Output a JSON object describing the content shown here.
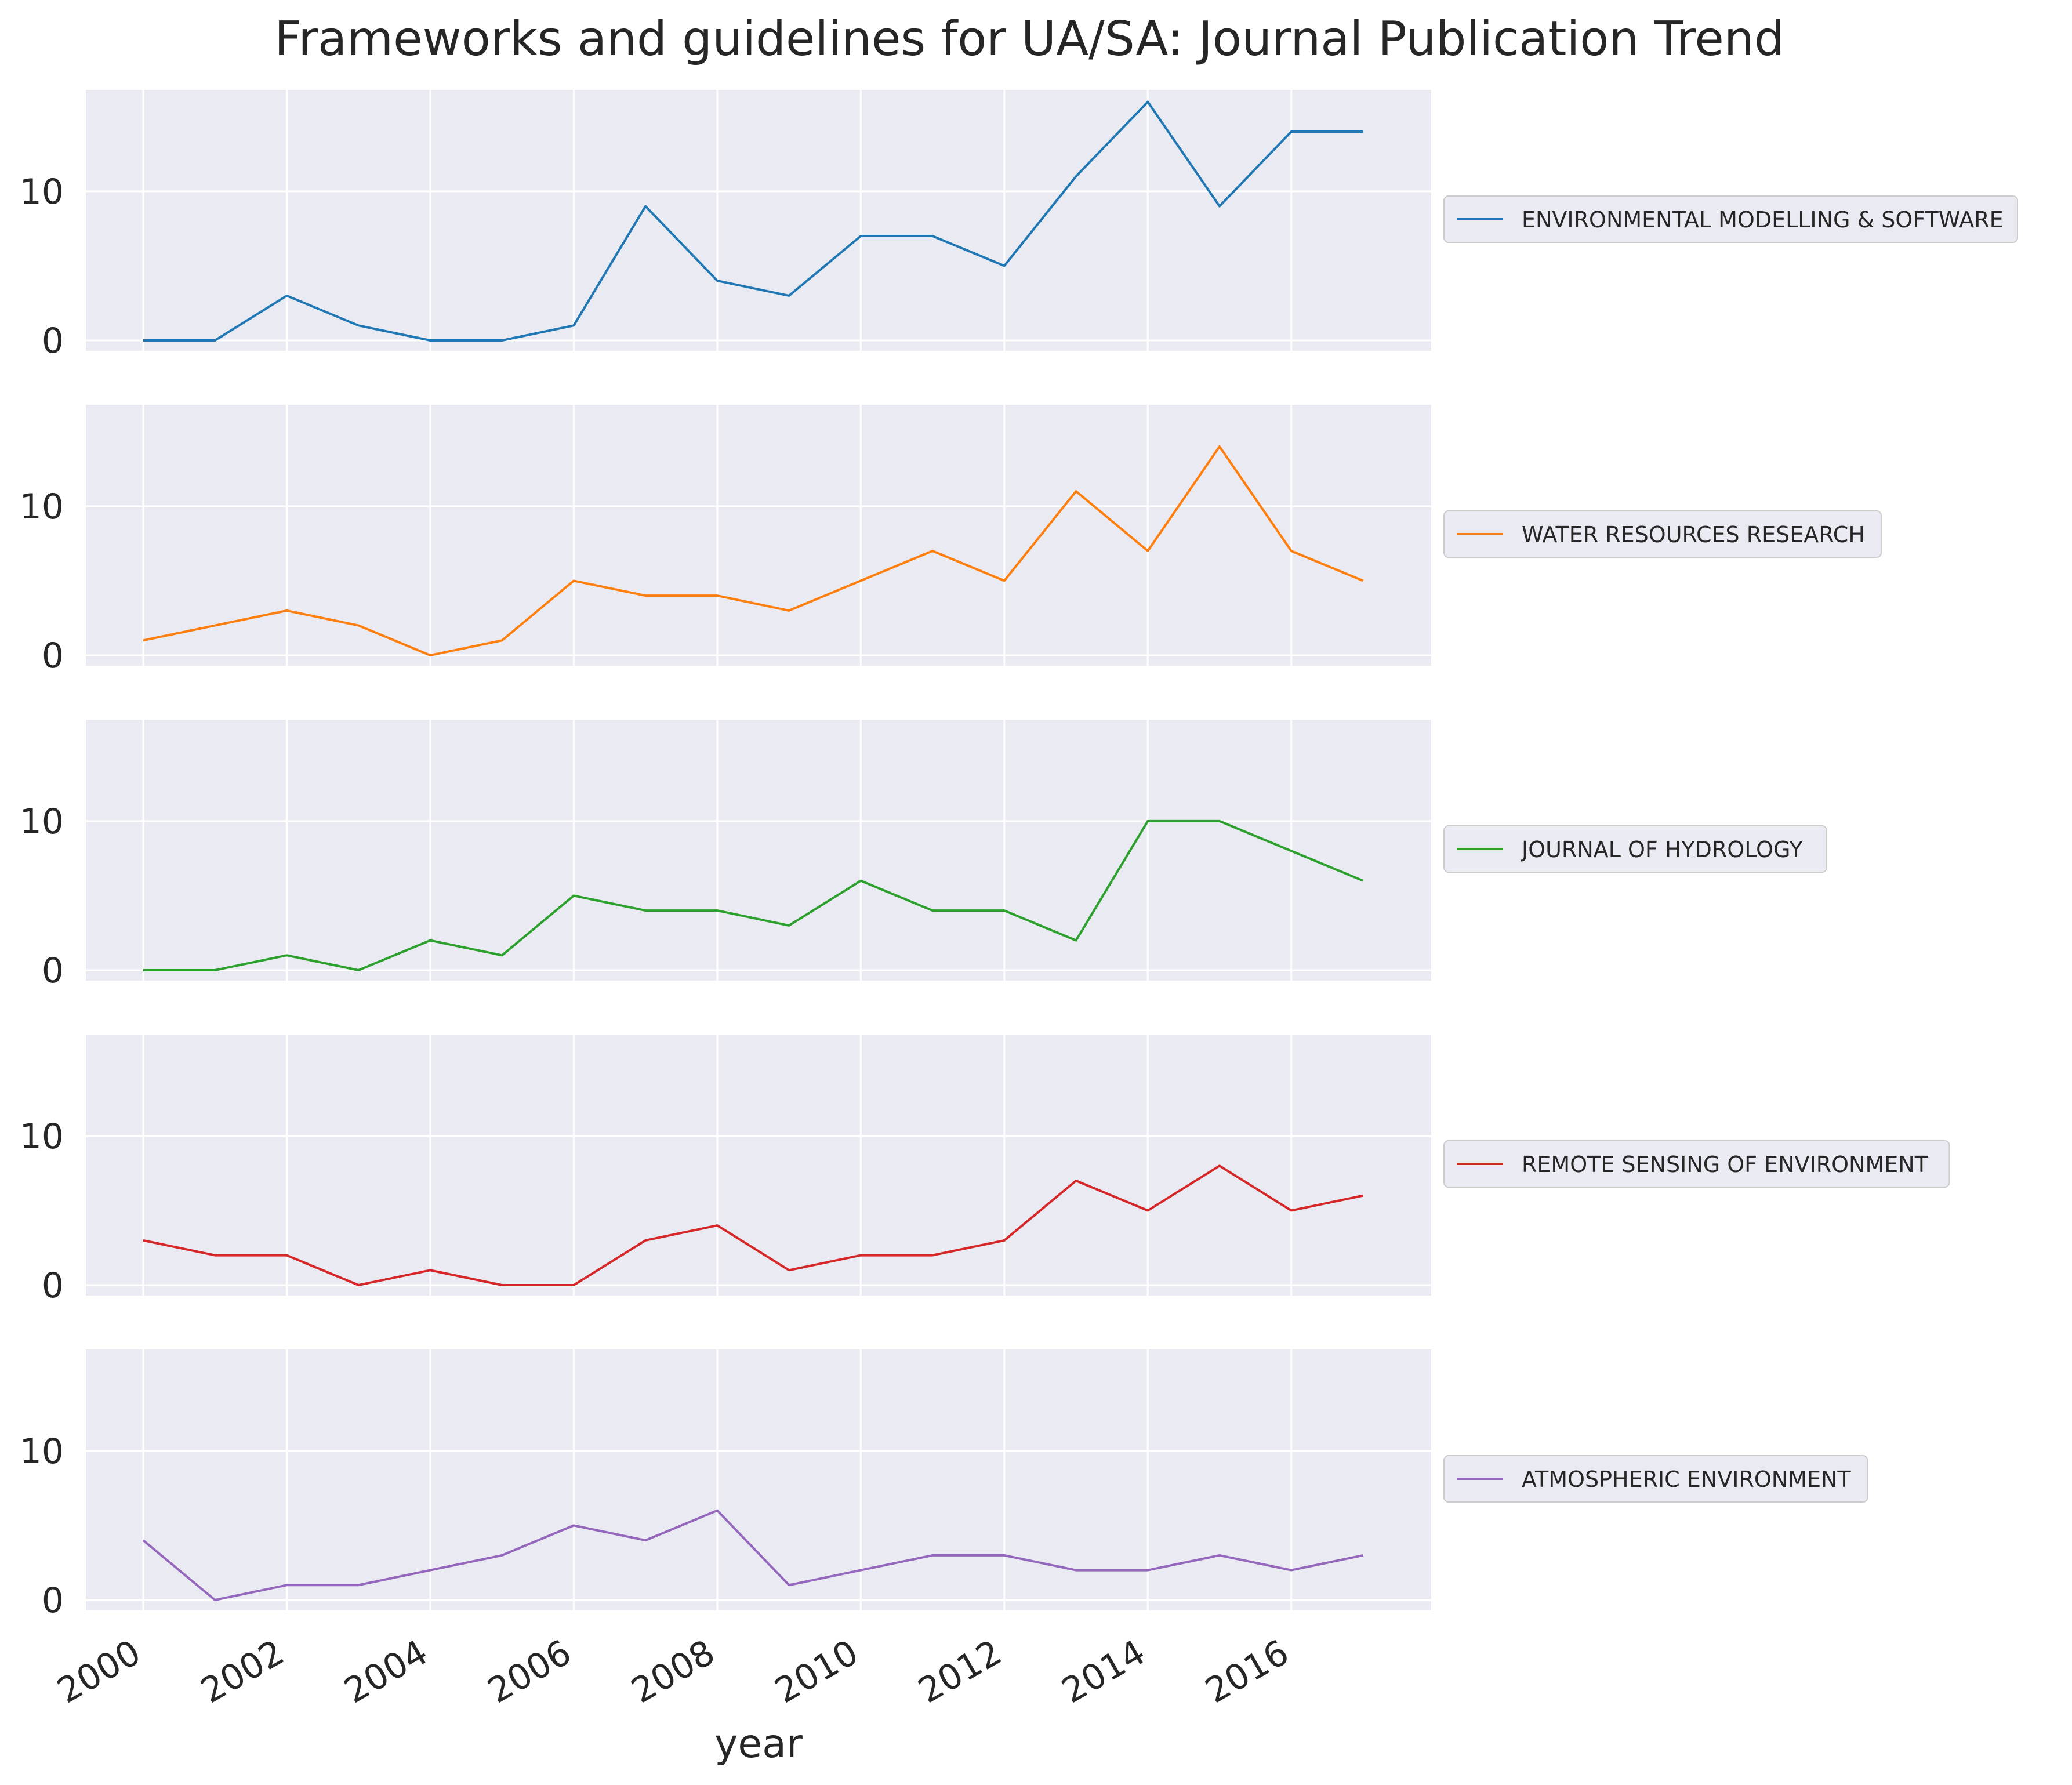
{
  "chart_data": {
    "type": "line",
    "title": "Frameworks and guidelines for UA/SA: Journal Publication Trend",
    "xlabel": "year",
    "ylabel": "",
    "x": [
      2000,
      2001,
      2002,
      2003,
      2004,
      2005,
      2006,
      2007,
      2008,
      2009,
      2010,
      2011,
      2012,
      2013,
      2014,
      2015,
      2016,
      2017
    ],
    "x_ticks": [
      "2000",
      "2002",
      "2004",
      "2006",
      "2008",
      "2010",
      "2012",
      "2014",
      "2016"
    ],
    "y_ticks": [
      "0",
      "10"
    ],
    "xlim": [
      1999.2,
      2017.95
    ],
    "ylim": [
      -0.7,
      16.8
    ],
    "grid": true,
    "legend_position": "outside right of each panel",
    "background": "#eaeaf2",
    "series": [
      {
        "name": "ENVIRONMENTAL MODELLING & SOFTWARE",
        "color": "#1f77b4",
        "values": [
          0,
          0,
          3,
          1,
          0,
          0,
          1,
          9,
          4,
          3,
          7,
          7,
          5,
          11,
          16,
          9,
          14,
          14
        ]
      },
      {
        "name": "WATER RESOURCES RESEARCH",
        "color": "#ff7f0e",
        "values": [
          1,
          2,
          3,
          2,
          0,
          1,
          5,
          4,
          4,
          3,
          5,
          7,
          5,
          11,
          7,
          14,
          7,
          5
        ]
      },
      {
        "name": "JOURNAL OF HYDROLOGY",
        "color": "#2ca02c",
        "values": [
          0,
          0,
          1,
          0,
          2,
          1,
          5,
          4,
          4,
          3,
          6,
          4,
          4,
          2,
          10,
          10,
          8,
          6
        ]
      },
      {
        "name": "REMOTE SENSING OF ENVIRONMENT",
        "color": "#d62728",
        "values": [
          3,
          2,
          2,
          0,
          1,
          0,
          0,
          3,
          4,
          1,
          2,
          2,
          3,
          7,
          5,
          8,
          5,
          6
        ]
      },
      {
        "name": "ATMOSPHERIC ENVIRONMENT",
        "color": "#9467bd",
        "values": [
          4,
          0,
          1,
          1,
          2,
          3,
          5,
          4,
          6,
          1,
          2,
          3,
          3,
          2,
          2,
          3,
          2,
          3
        ]
      }
    ]
  }
}
